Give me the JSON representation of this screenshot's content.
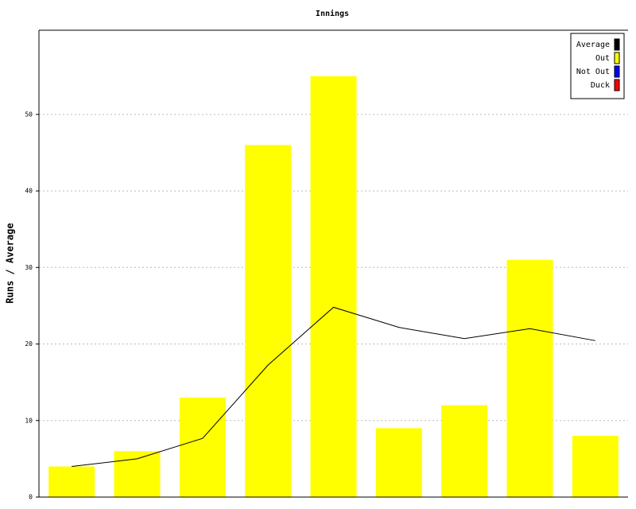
{
  "chart_data": {
    "type": "bar",
    "title": "Innings",
    "y_label": "Runs / Average",
    "categories": [
      null,
      null,
      null,
      null,
      null,
      null,
      null,
      null,
      null
    ],
    "series": [
      {
        "name": "Average",
        "type": "line",
        "color": "#000000",
        "values": [
          4,
          5,
          7.67,
          17.25,
          24.8,
          22.17,
          20.71,
          22,
          20.44
        ]
      },
      {
        "name": "Out",
        "type": "bar",
        "color": "#ffff00",
        "values": [
          4,
          6,
          13,
          46,
          55,
          9,
          12,
          31,
          8
        ]
      },
      {
        "name": "Not Out",
        "type": "bar",
        "color": "#0000ff",
        "values": [
          null,
          null,
          null,
          null,
          null,
          null,
          null,
          null,
          null
        ]
      },
      {
        "name": "Duck",
        "type": "bar",
        "color": "#ff0000",
        "values": [
          null,
          null,
          null,
          null,
          null,
          null,
          null,
          null,
          null
        ]
      }
    ],
    "ylim": [
      0,
      61
    ],
    "yticks": [
      0,
      10,
      20,
      30,
      40,
      50
    ],
    "grid": true,
    "legend": "top-right"
  }
}
